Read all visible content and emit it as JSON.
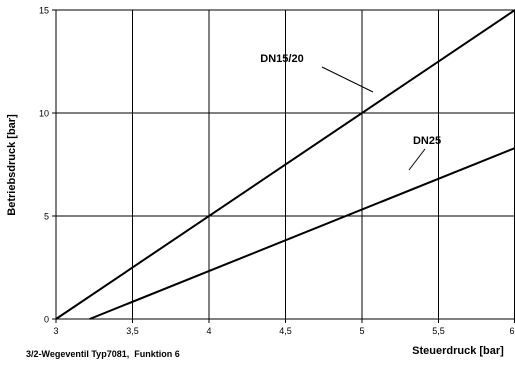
{
  "chart_data": {
    "type": "line",
    "xlabel": "Steuerdruck [bar]",
    "ylabel": "Betriebsdruck [bar]",
    "caption": "3/2-Wegeventil Typ7081,  Funktion 6",
    "xlim": [
      3,
      6
    ],
    "ylim": [
      0,
      15
    ],
    "x_ticks": [
      3,
      3.5,
      4,
      4.5,
      5,
      5.5,
      6
    ],
    "x_tick_labels": [
      "3",
      "3,5",
      "4",
      "4,5",
      "5",
      "5,5",
      "6"
    ],
    "y_ticks": [
      0,
      5,
      10,
      15
    ],
    "y_tick_labels": [
      "0",
      "5",
      "10",
      "15"
    ],
    "grid": true,
    "series": [
      {
        "name": "DN15/20",
        "x": [
          3.0,
          6.0
        ],
        "y": [
          0.0,
          15.0
        ],
        "label_at": [
          5.1,
          10.9
        ]
      },
      {
        "name": "DN25",
        "x": [
          3.22,
          6.0
        ],
        "y": [
          0.0,
          8.3
        ],
        "label_at": [
          5.3,
          7.3
        ]
      }
    ],
    "colors": {
      "line": "#000000",
      "grid": "#000000",
      "background": "#ffffff"
    }
  }
}
